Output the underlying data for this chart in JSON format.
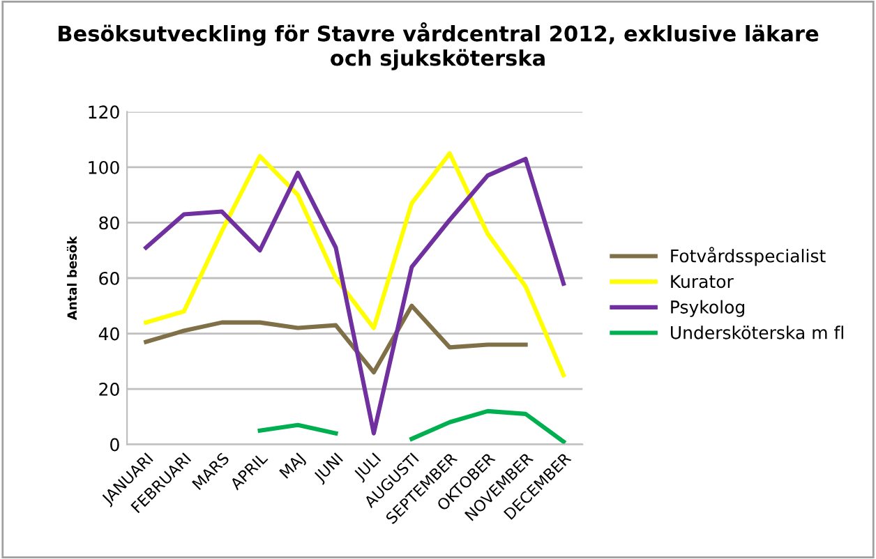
{
  "chart_data": {
    "type": "line",
    "title": "Besöksutveckling för Stavre vårdcentral 2012, exklusive läkare\noch sjuksköterska",
    "ylabel": "Antal besök",
    "categories": [
      "JANUARI",
      "FEBRUARI",
      "MARS",
      "APRIL",
      "MAJ",
      "JUNI",
      "JULI",
      "AUGUSTI",
      "SEPTEMBER",
      "OKTOBER",
      "NOVEMBER",
      "DECEMBER"
    ],
    "series": [
      {
        "name": "Fotvårdsspecialist",
        "color": "#7f7047",
        "values": [
          37,
          41,
          44,
          44,
          42,
          43,
          26,
          50,
          35,
          36,
          36,
          null
        ]
      },
      {
        "name": "Kurator",
        "color": "#ffff00",
        "values": [
          44,
          48,
          77,
          104,
          90,
          60,
          42,
          87,
          105,
          76,
          57,
          25
        ]
      },
      {
        "name": "Psykolog",
        "color": "#7030a0",
        "values": [
          71,
          83,
          84,
          70,
          98,
          71,
          4,
          64,
          81,
          97,
          103,
          58
        ]
      },
      {
        "name": "Undersköterska m fl",
        "color": "#00b050",
        "values": [
          null,
          null,
          null,
          5,
          7,
          4,
          null,
          2,
          8,
          12,
          11,
          1
        ]
      }
    ],
    "ylim": [
      0,
      120
    ],
    "yticks": [
      0,
      20,
      40,
      60,
      80,
      100,
      120
    ],
    "grid": "y",
    "legend": "right",
    "marker": "none",
    "line_style": "solid"
  }
}
